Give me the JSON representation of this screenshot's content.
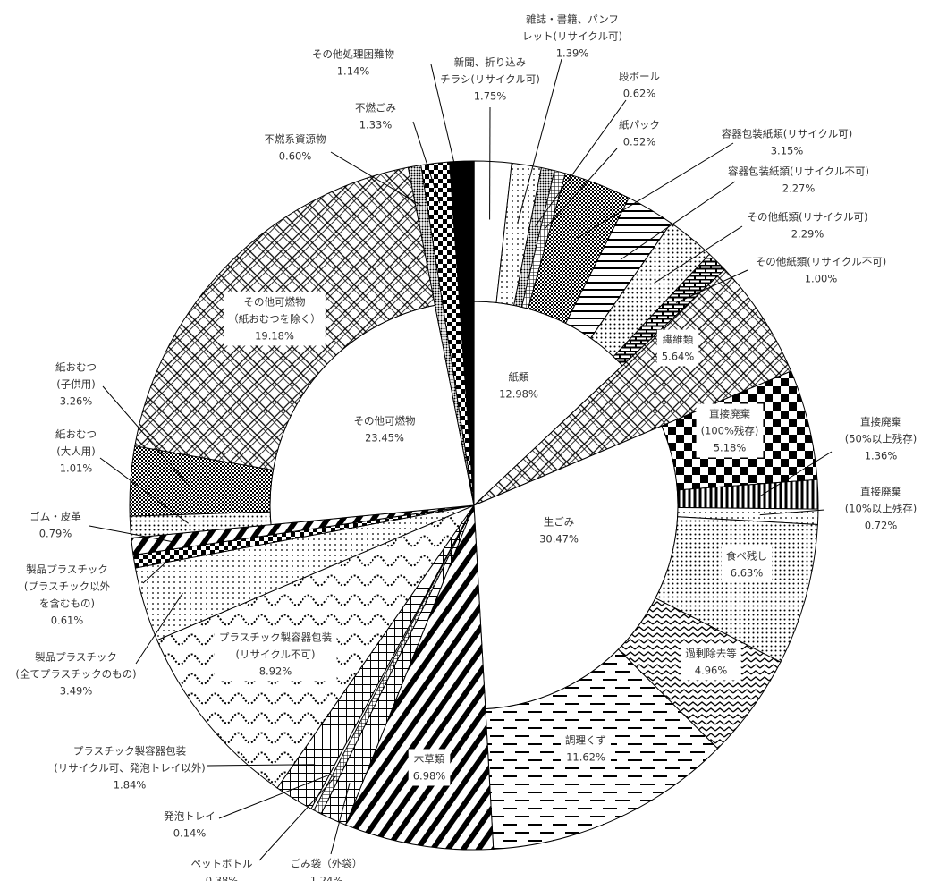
{
  "chart_data": {
    "type": "sunburst",
    "segments": [
      {
        "name": [
          "紙類"
        ],
        "value": 12.98,
        "value_label": "12.98%",
        "children": [
          {
            "name": [
              "新聞、折り込み",
              "チラシ(リサイクル可)"
            ],
            "value": 1.75,
            "value_label": "1.75%",
            "pattern": "white"
          },
          {
            "name": [
              "雑誌・書籍、パンフ",
              "レット(リサイクル可)"
            ],
            "value": 1.39,
            "value_label": "1.39%",
            "pattern": "dotsS"
          },
          {
            "name": [
              "段ボール"
            ],
            "value": 0.62,
            "value_label": "0.62%",
            "pattern": "dotsD"
          },
          {
            "name": [
              "紙パック"
            ],
            "value": 0.52,
            "value_label": "0.52%",
            "pattern": "crossS"
          },
          {
            "name": [
              "容器包装紙類(リサイクル可)"
            ],
            "value": 3.15,
            "value_label": "3.15%",
            "pattern": "checkS"
          },
          {
            "name": [
              "容器包装紙類(リサイクル不可)"
            ],
            "value": 2.27,
            "value_label": "2.27%",
            "pattern": "hlines"
          },
          {
            "name": [
              "その他紙類(リサイクル可)"
            ],
            "value": 2.29,
            "value_label": "2.29%",
            "pattern": "dotsM"
          },
          {
            "name": [
              "その他紙類(リサイクル不可)"
            ],
            "value": 1.0,
            "value_label": "1.00%",
            "pattern": "brick"
          }
        ]
      },
      {
        "name": [
          "繊維類"
        ],
        "value": 5.64,
        "value_label": "5.64%",
        "pattern": "diamond"
      },
      {
        "name": [
          "生ごみ"
        ],
        "value": 30.47,
        "value_label": "30.47%",
        "children": [
          {
            "name": [
              "直接廃棄",
              "(100%残存)"
            ],
            "value": 5.18,
            "value_label": "5.18%",
            "pattern": "checkL"
          },
          {
            "name": [
              "直接廃棄",
              "(50%以上残存)"
            ],
            "value": 1.36,
            "value_label": "1.36%",
            "pattern": "vlines"
          },
          {
            "name": [
              "直接廃棄",
              "(10%以上残存)"
            ],
            "value": 0.72,
            "value_label": "0.72%",
            "pattern": "dotsS"
          },
          {
            "name": [
              "食べ残し"
            ],
            "value": 6.63,
            "value_label": "6.63%",
            "pattern": "dotsM"
          },
          {
            "name": [
              "過剰除去等"
            ],
            "value": 4.96,
            "value_label": "4.96%",
            "pattern": "zigzag"
          },
          {
            "name": [
              "調理くず"
            ],
            "value": 11.62,
            "value_label": "11.62%",
            "pattern": "dashes"
          }
        ]
      },
      {
        "name": [
          "木草類"
        ],
        "value": 6.98,
        "value_label": "6.98%",
        "pattern": "diag"
      },
      {
        "name": [
          "ごみ袋（外袋）"
        ],
        "value": 1.24,
        "value_label": "1.24%",
        "pattern": "grid"
      },
      {
        "name": [
          "ペットボトル"
        ],
        "value": 0.38,
        "value_label": "0.38%",
        "pattern": "crossS"
      },
      {
        "name": [
          "発泡トレイ"
        ],
        "value": 0.14,
        "value_label": "0.14%",
        "pattern": "white"
      },
      {
        "name": [
          "プラスチック製容器包装",
          "(リサイクル可、発泡トレイ以外)"
        ],
        "value": 1.84,
        "value_label": "1.84%",
        "pattern": "grid"
      },
      {
        "name": [
          "プラスチック製容器包装",
          "(リサイクル不可)"
        ],
        "value": 8.92,
        "value_label": "8.92%",
        "pattern": "wave"
      },
      {
        "name": [
          "製品プラスチック",
          "(全てプラスチックのもの)"
        ],
        "value": 3.49,
        "value_label": "3.49%",
        "pattern": "dotsS"
      },
      {
        "name": [
          "製品プラスチック",
          "(プラスチック以外",
          "を含むもの)"
        ],
        "value": 0.61,
        "value_label": "0.61%",
        "pattern": "checkM"
      },
      {
        "name": [
          "ゴム・皮革"
        ],
        "value": 0.79,
        "value_label": "0.79%",
        "pattern": "diag"
      },
      {
        "name": [
          "その他可燃物"
        ],
        "value": 23.45,
        "value_label": "23.45%",
        "children": [
          {
            "name": [
              "紙おむつ",
              "(大人用)"
            ],
            "value": 1.01,
            "value_label": "1.01%",
            "pattern": "dotsM"
          },
          {
            "name": [
              "紙おむつ",
              "(子供用)"
            ],
            "value": 3.26,
            "value_label": "3.26%",
            "pattern": "checkS"
          },
          {
            "name": [
              "その他可燃物",
              "（紙おむつを除く）"
            ],
            "value": 19.18,
            "value_label": "19.18%",
            "pattern": "diamond"
          }
        ]
      },
      {
        "name": [
          "不燃系資源物"
        ],
        "value": 0.6,
        "value_label": "0.60%",
        "pattern": "dotsD"
      },
      {
        "name": [
          "不燃ごみ"
        ],
        "value": 1.33,
        "value_label": "1.33%",
        "pattern": "checkM"
      },
      {
        "name": [
          "その他処理困難物"
        ],
        "value": 1.14,
        "value_label": "1.14%",
        "pattern": "black"
      }
    ]
  }
}
